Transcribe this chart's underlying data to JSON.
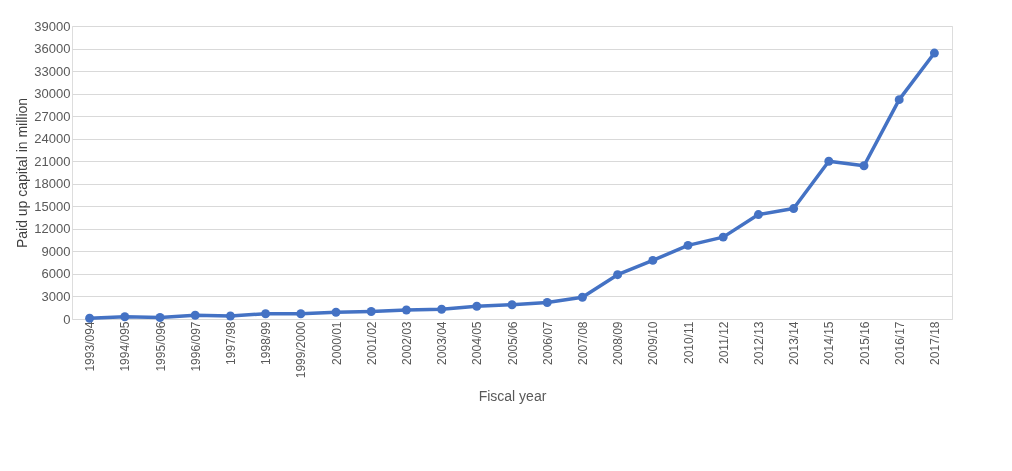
{
  "chart_data": {
    "type": "line",
    "xlabel": "Fiscal year",
    "ylabel": "Paid up capital in million",
    "categories": [
      "1993/094",
      "1994/095",
      "1995/096",
      "1996/097",
      "1997/98",
      "1998/99",
      "1999/2000",
      "2000/01",
      "2001/02",
      "2002/03",
      "2003/04",
      "2004/05",
      "2005/06",
      "2006/07",
      "2007/08",
      "2008/09",
      "2009/10",
      "2010/11",
      "2011/12",
      "2012/13",
      "2013/14",
      "2014/15",
      "2015/16",
      "2016/17",
      "2017/18"
    ],
    "series": [
      {
        "color": "#4472c4",
        "values": [
          100,
          300,
          200,
          500,
          400,
          700,
          700,
          900,
          1000,
          1200,
          1300,
          1700,
          1900,
          2200,
          2900,
          5900,
          7800,
          9800,
          10900,
          13900,
          14700,
          21000,
          20400,
          29200,
          35400
        ]
      }
    ],
    "ylim": [
      0,
      39000
    ],
    "yticks": [
      0,
      3000,
      6000,
      9000,
      12000,
      15000,
      18000,
      21000,
      24000,
      27000,
      30000,
      33000,
      36000,
      39000
    ],
    "grid": "y",
    "marker": "circle",
    "line_style": "solid"
  }
}
